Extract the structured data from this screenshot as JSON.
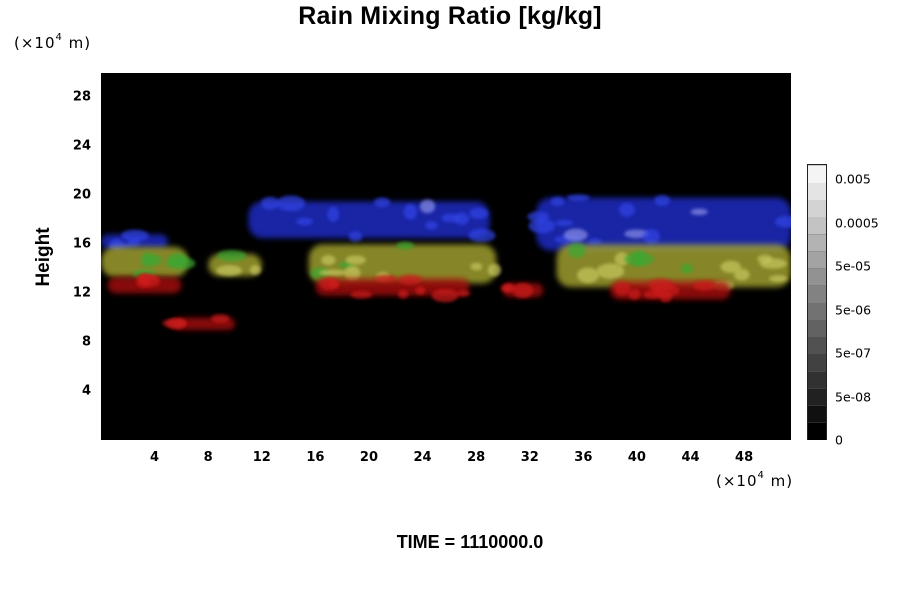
{
  "chart_data": {
    "type": "heatmap",
    "title": "Rain Mixing Ratio [kg/kg]",
    "ylabel": "Height",
    "x_unit": {
      "prefix": "(×10",
      "exp": "4",
      "suffix": " m)"
    },
    "y_unit": {
      "prefix": "(×10",
      "exp": "4",
      "suffix": " m)"
    },
    "xlim": [
      0,
      51.5
    ],
    "ylim": [
      0,
      30
    ],
    "x_ticks": [
      4,
      8,
      12,
      16,
      20,
      24,
      28,
      32,
      36,
      40,
      44,
      48
    ],
    "y_ticks": [
      4,
      8,
      12,
      16,
      20,
      24,
      28
    ],
    "background": "#000000",
    "colorbar": {
      "labels": [
        "0.005",
        "0.0005",
        "5e-05",
        "5e-06",
        "5e-07",
        "5e-08",
        "0"
      ],
      "levels": 16,
      "min_color": "#000000",
      "max_color": "#f4f4f4"
    },
    "features": [
      {
        "layer": "upper",
        "color": "#2233dd",
        "x": [
          0,
          5
        ],
        "y": [
          15.6,
          16.8
        ]
      },
      {
        "layer": "upper",
        "color": "#2233dd",
        "x": [
          11,
          29
        ],
        "y": [
          16.5,
          19.5
        ]
      },
      {
        "layer": "upper",
        "color": "#2233dd",
        "x": [
          32.5,
          51.5
        ],
        "y": [
          15.5,
          19.8
        ]
      },
      {
        "layer": "middle",
        "color": "#a8a832",
        "x": [
          0,
          6.5
        ],
        "y": [
          13.3,
          15.8
        ]
      },
      {
        "layer": "middle",
        "color": "#a8a832",
        "x": [
          8,
          12
        ],
        "y": [
          13.4,
          15.2
        ]
      },
      {
        "layer": "middle",
        "color": "#a8a832",
        "x": [
          15.5,
          29.5
        ],
        "y": [
          12.8,
          16
        ]
      },
      {
        "layer": "middle",
        "color": "#a8a832",
        "x": [
          34,
          51.5
        ],
        "y": [
          12.5,
          16
        ]
      },
      {
        "layer": "lower",
        "color": "#aa1111",
        "x": [
          0.5,
          6
        ],
        "y": [
          12,
          13.3
        ]
      },
      {
        "layer": "lower",
        "color": "#aa1111",
        "x": [
          16,
          27.5
        ],
        "y": [
          11.8,
          13.2
        ]
      },
      {
        "layer": "lower",
        "color": "#aa1111",
        "x": [
          30,
          33
        ],
        "y": [
          11.7,
          12.8
        ]
      },
      {
        "layer": "lower",
        "color": "#aa1111",
        "x": [
          38,
          47
        ],
        "y": [
          11.5,
          13
        ]
      },
      {
        "layer": "lower",
        "color": "#aa1111",
        "x": [
          5.5,
          10
        ],
        "y": [
          9,
          10
        ]
      }
    ]
  },
  "time_label": "TIME = 1110000.0"
}
